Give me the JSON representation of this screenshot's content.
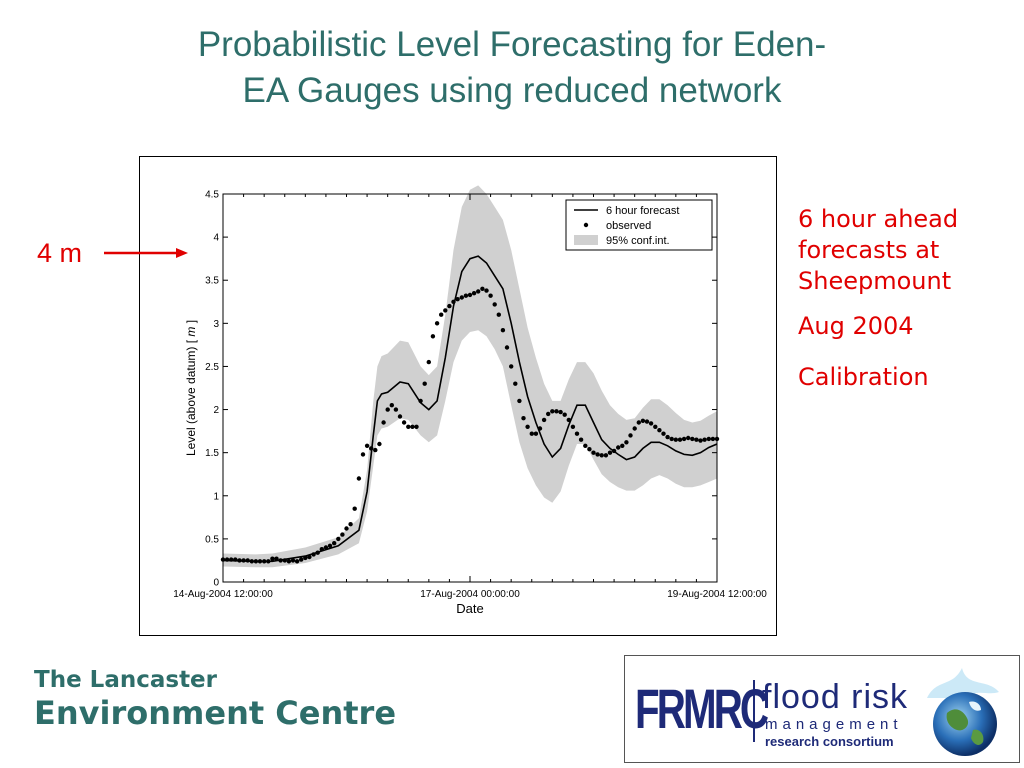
{
  "slide": {
    "title_line1": "Probabilistic Level Forecasting for Eden-",
    "title_line2": "EA Gauges using reduced network",
    "annotation": "4 m",
    "notes": [
      "6 hour ahead forecasts at Sheepmount",
      "Aug 2004",
      "Calibration"
    ],
    "footer_left_line1": "The Lancaster",
    "footer_left_line2": "Environment Centre",
    "logo_acronym": "FRMRC",
    "logo_line1": "flood risk",
    "logo_line2": "management",
    "logo_line3": "research consortium"
  },
  "colors": {
    "title": "#2e6e6a",
    "accent": "#e00000",
    "logo": "#1e2a78",
    "band": "#d0d0d0"
  },
  "chart_data": {
    "type": "line",
    "xlabel": "Date",
    "ylabel_prefix": "Level (above datum) [ ",
    "ylabel_unit": "m",
    "ylabel_suffix": " ]",
    "xlim": [
      0,
      120
    ],
    "ylim": [
      0,
      4.5
    ],
    "yticks": [
      0,
      0.5,
      1,
      1.5,
      2,
      2.5,
      3,
      3.5,
      4,
      4.5
    ],
    "ytick_labels": [
      "0",
      "0.5",
      "1",
      "1.5",
      "2",
      "2.5",
      "3",
      "3.5",
      "4",
      "4.5"
    ],
    "xticks": [
      0,
      60,
      120
    ],
    "xtick_labels": [
      "14-Aug-2004 12:00:00",
      "17-Aug-2004 00:00:00",
      "19-Aug-2004 12:00:00"
    ],
    "legend": {
      "placement": "top-right",
      "entries": [
        "6 hour forecast",
        "observed",
        "95% conf.int."
      ]
    },
    "series": [
      {
        "name": "6 hour forecast",
        "x": [
          0,
          8,
          12,
          20,
          28,
          33,
          35,
          36.5,
          37.5,
          38.5,
          40,
          43,
          45,
          48,
          50,
          52,
          54,
          56,
          58,
          60,
          62,
          64,
          66,
          68,
          70,
          72,
          74,
          76,
          78,
          80,
          82,
          84,
          86,
          88,
          90,
          92,
          94,
          96,
          98,
          100,
          102,
          104,
          106,
          108,
          110,
          112,
          114,
          116,
          118,
          120
        ],
        "y": [
          0.25,
          0.24,
          0.24,
          0.3,
          0.42,
          0.6,
          1.05,
          1.7,
          2.1,
          2.18,
          2.2,
          2.32,
          2.3,
          2.08,
          2.0,
          2.1,
          2.6,
          3.2,
          3.6,
          3.75,
          3.78,
          3.7,
          3.55,
          3.4,
          3.0,
          2.55,
          2.15,
          1.85,
          1.6,
          1.45,
          1.55,
          1.82,
          2.05,
          2.05,
          1.85,
          1.65,
          1.55,
          1.48,
          1.42,
          1.45,
          1.55,
          1.62,
          1.62,
          1.58,
          1.52,
          1.48,
          1.47,
          1.5,
          1.56,
          1.6
        ]
      },
      {
        "name": "observed",
        "x": [
          0,
          1,
          2,
          3,
          4,
          5,
          6,
          7,
          8,
          9,
          10,
          11,
          12,
          13,
          14,
          15,
          16,
          17,
          18,
          19,
          20,
          21,
          22,
          23,
          24,
          25,
          26,
          27,
          28,
          29,
          30,
          31,
          32,
          33,
          34,
          35,
          36,
          37,
          38,
          39,
          40,
          41,
          42,
          43,
          44,
          45,
          46,
          47,
          48,
          49,
          50,
          51,
          52,
          53,
          54,
          55,
          56,
          57,
          58,
          59,
          60,
          61,
          62,
          63,
          64,
          65,
          66,
          67,
          68,
          69,
          70,
          71,
          72,
          73,
          74,
          75,
          76,
          77,
          78,
          79,
          80,
          81,
          82,
          83,
          84,
          85,
          86,
          87,
          88,
          89,
          90,
          91,
          92,
          93,
          94,
          95,
          96,
          97,
          98,
          99,
          100,
          101,
          102,
          103,
          104,
          105,
          106,
          107,
          108,
          109,
          110,
          111,
          112,
          113,
          114,
          115,
          116,
          117,
          118,
          119,
          120
        ],
        "y": [
          0.26,
          0.26,
          0.26,
          0.26,
          0.25,
          0.25,
          0.25,
          0.24,
          0.24,
          0.24,
          0.24,
          0.24,
          0.27,
          0.27,
          0.25,
          0.25,
          0.24,
          0.25,
          0.24,
          0.26,
          0.28,
          0.29,
          0.32,
          0.34,
          0.38,
          0.4,
          0.42,
          0.45,
          0.5,
          0.55,
          0.62,
          0.67,
          0.85,
          1.2,
          1.48,
          1.58,
          1.55,
          1.53,
          1.6,
          1.85,
          2.0,
          2.05,
          2.0,
          1.92,
          1.85,
          1.8,
          1.8,
          1.8,
          2.1,
          2.3,
          2.55,
          2.85,
          3.0,
          3.1,
          3.15,
          3.2,
          3.25,
          3.28,
          3.3,
          3.32,
          3.33,
          3.35,
          3.37,
          3.4,
          3.38,
          3.32,
          3.22,
          3.1,
          2.92,
          2.72,
          2.5,
          2.3,
          2.1,
          1.9,
          1.8,
          1.72,
          1.72,
          1.78,
          1.88,
          1.95,
          1.98,
          1.98,
          1.97,
          1.94,
          1.88,
          1.8,
          1.72,
          1.65,
          1.58,
          1.54,
          1.5,
          1.48,
          1.47,
          1.47,
          1.5,
          1.52,
          1.56,
          1.58,
          1.62,
          1.7,
          1.78,
          1.85,
          1.87,
          1.86,
          1.84,
          1.8,
          1.76,
          1.72,
          1.68,
          1.66,
          1.65,
          1.65,
          1.66,
          1.67,
          1.66,
          1.65,
          1.64,
          1.65,
          1.66,
          1.66,
          1.66
        ]
      }
    ],
    "conf_int": {
      "name": "95% conf.int.",
      "x": [
        0,
        8,
        12,
        20,
        28,
        33,
        35,
        36.5,
        37.5,
        38.5,
        40,
        43,
        45,
        48,
        50,
        52,
        54,
        56,
        58,
        60,
        62,
        64,
        66,
        68,
        70,
        72,
        74,
        76,
        78,
        80,
        82,
        84,
        86,
        88,
        90,
        92,
        94,
        96,
        98,
        100,
        102,
        104,
        106,
        108,
        110,
        112,
        114,
        116,
        118,
        120
      ],
      "lower": [
        0.18,
        0.17,
        0.17,
        0.22,
        0.32,
        0.45,
        0.82,
        1.35,
        1.7,
        1.78,
        1.8,
        1.9,
        1.88,
        1.7,
        1.62,
        1.7,
        2.1,
        2.55,
        2.8,
        2.9,
        2.92,
        2.85,
        2.7,
        2.5,
        2.05,
        1.62,
        1.32,
        1.12,
        0.98,
        0.92,
        1.05,
        1.35,
        1.6,
        1.6,
        1.42,
        1.25,
        1.16,
        1.1,
        1.06,
        1.06,
        1.12,
        1.2,
        1.24,
        1.2,
        1.14,
        1.1,
        1.1,
        1.12,
        1.16,
        1.2
      ],
      "upper": [
        0.33,
        0.32,
        0.33,
        0.4,
        0.52,
        0.74,
        1.3,
        2.1,
        2.5,
        2.62,
        2.65,
        2.8,
        2.78,
        2.5,
        2.4,
        2.5,
        3.1,
        3.85,
        4.35,
        4.55,
        4.6,
        4.5,
        4.35,
        4.2,
        3.85,
        3.4,
        2.95,
        2.6,
        2.3,
        2.1,
        2.1,
        2.35,
        2.55,
        2.55,
        2.42,
        2.22,
        2.05,
        1.95,
        1.88,
        1.9,
        2.02,
        2.12,
        2.12,
        2.05,
        1.96,
        1.88,
        1.85,
        1.87,
        1.93,
        1.98
      ]
    }
  }
}
